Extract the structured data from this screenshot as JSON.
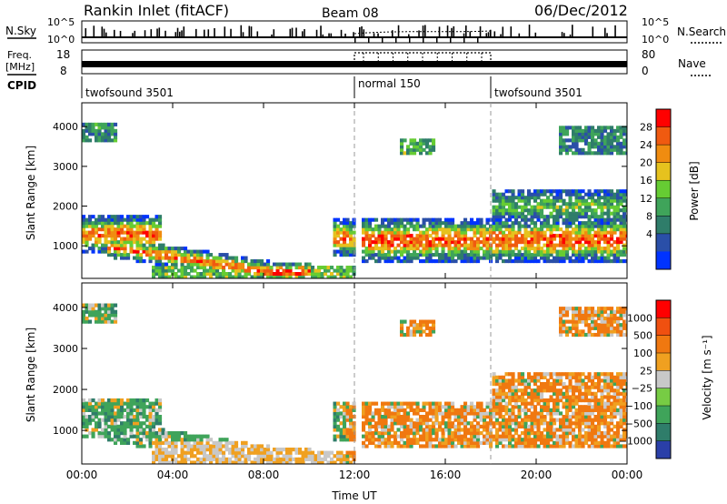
{
  "header": {
    "station": "Rankin Inlet (fitACF)",
    "beam": "Beam 08",
    "date": "06/Dec/2012"
  },
  "panels": {
    "nsky": {
      "label": "N.Sky",
      "right_label": "N.Search",
      "ticks_left": [
        "10^5",
        "10^0"
      ],
      "ticks_right": [
        "10^5",
        "10^0"
      ]
    },
    "freq": {
      "label_line1": "Freq.",
      "label_line2": "[MHz]",
      "right_label": "Nave",
      "ticks_left": [
        "18",
        "8"
      ],
      "ticks_right": [
        "80",
        "0"
      ]
    },
    "cpid": {
      "label": "CPID",
      "segments": [
        {
          "name": "twofsound 3501",
          "start_hour": 0,
          "end_hour": 12
        },
        {
          "name": "normal 150",
          "start_hour": 12,
          "end_hour": 18
        },
        {
          "name": "twofsound 3501",
          "start_hour": 18,
          "end_hour": 24
        }
      ]
    }
  },
  "chart_data": [
    {
      "type": "heatmap",
      "quantity": "Power",
      "ylabel": "Slant Range [km]",
      "xlabel": "",
      "ylim": [
        180,
        4600
      ],
      "yticks": [
        "1000",
        "2000",
        "3000",
        "4000"
      ],
      "xlim_hours": [
        0,
        24
      ],
      "colorbar": {
        "label": "Power [dB]",
        "ticks": [
          "28",
          "24",
          "20",
          "16",
          "12",
          "8",
          "4"
        ],
        "colors": [
          "#0033ff",
          "#2a4fa8",
          "#2f7d6a",
          "#3fa45a",
          "#66cc33",
          "#e6c21e",
          "#f08c10",
          "#f05a10",
          "#ff0000"
        ]
      }
    },
    {
      "type": "heatmap",
      "quantity": "Velocity",
      "ylabel": "Slant Range [km]",
      "xlabel": "Time UT",
      "ylim": [
        180,
        4600
      ],
      "yticks": [
        "1000",
        "2000",
        "3000",
        "4000"
      ],
      "xlim_hours": [
        0,
        24
      ],
      "xticks": [
        "00:00",
        "04:00",
        "08:00",
        "12:00",
        "16:00",
        "20:00",
        "00:00"
      ],
      "colorbar": {
        "label": "Velocity [m s⁻¹]",
        "ticks": [
          "1000",
          "500",
          "100",
          "25",
          "−25",
          "−100",
          "−500",
          "−1000"
        ],
        "colors": [
          "#2a3fa8",
          "#2f7d6a",
          "#3fa45a",
          "#77cc44",
          "#c8c8c8",
          "#f0a020",
          "#f07810",
          "#f05010",
          "#ff0000"
        ]
      }
    }
  ]
}
